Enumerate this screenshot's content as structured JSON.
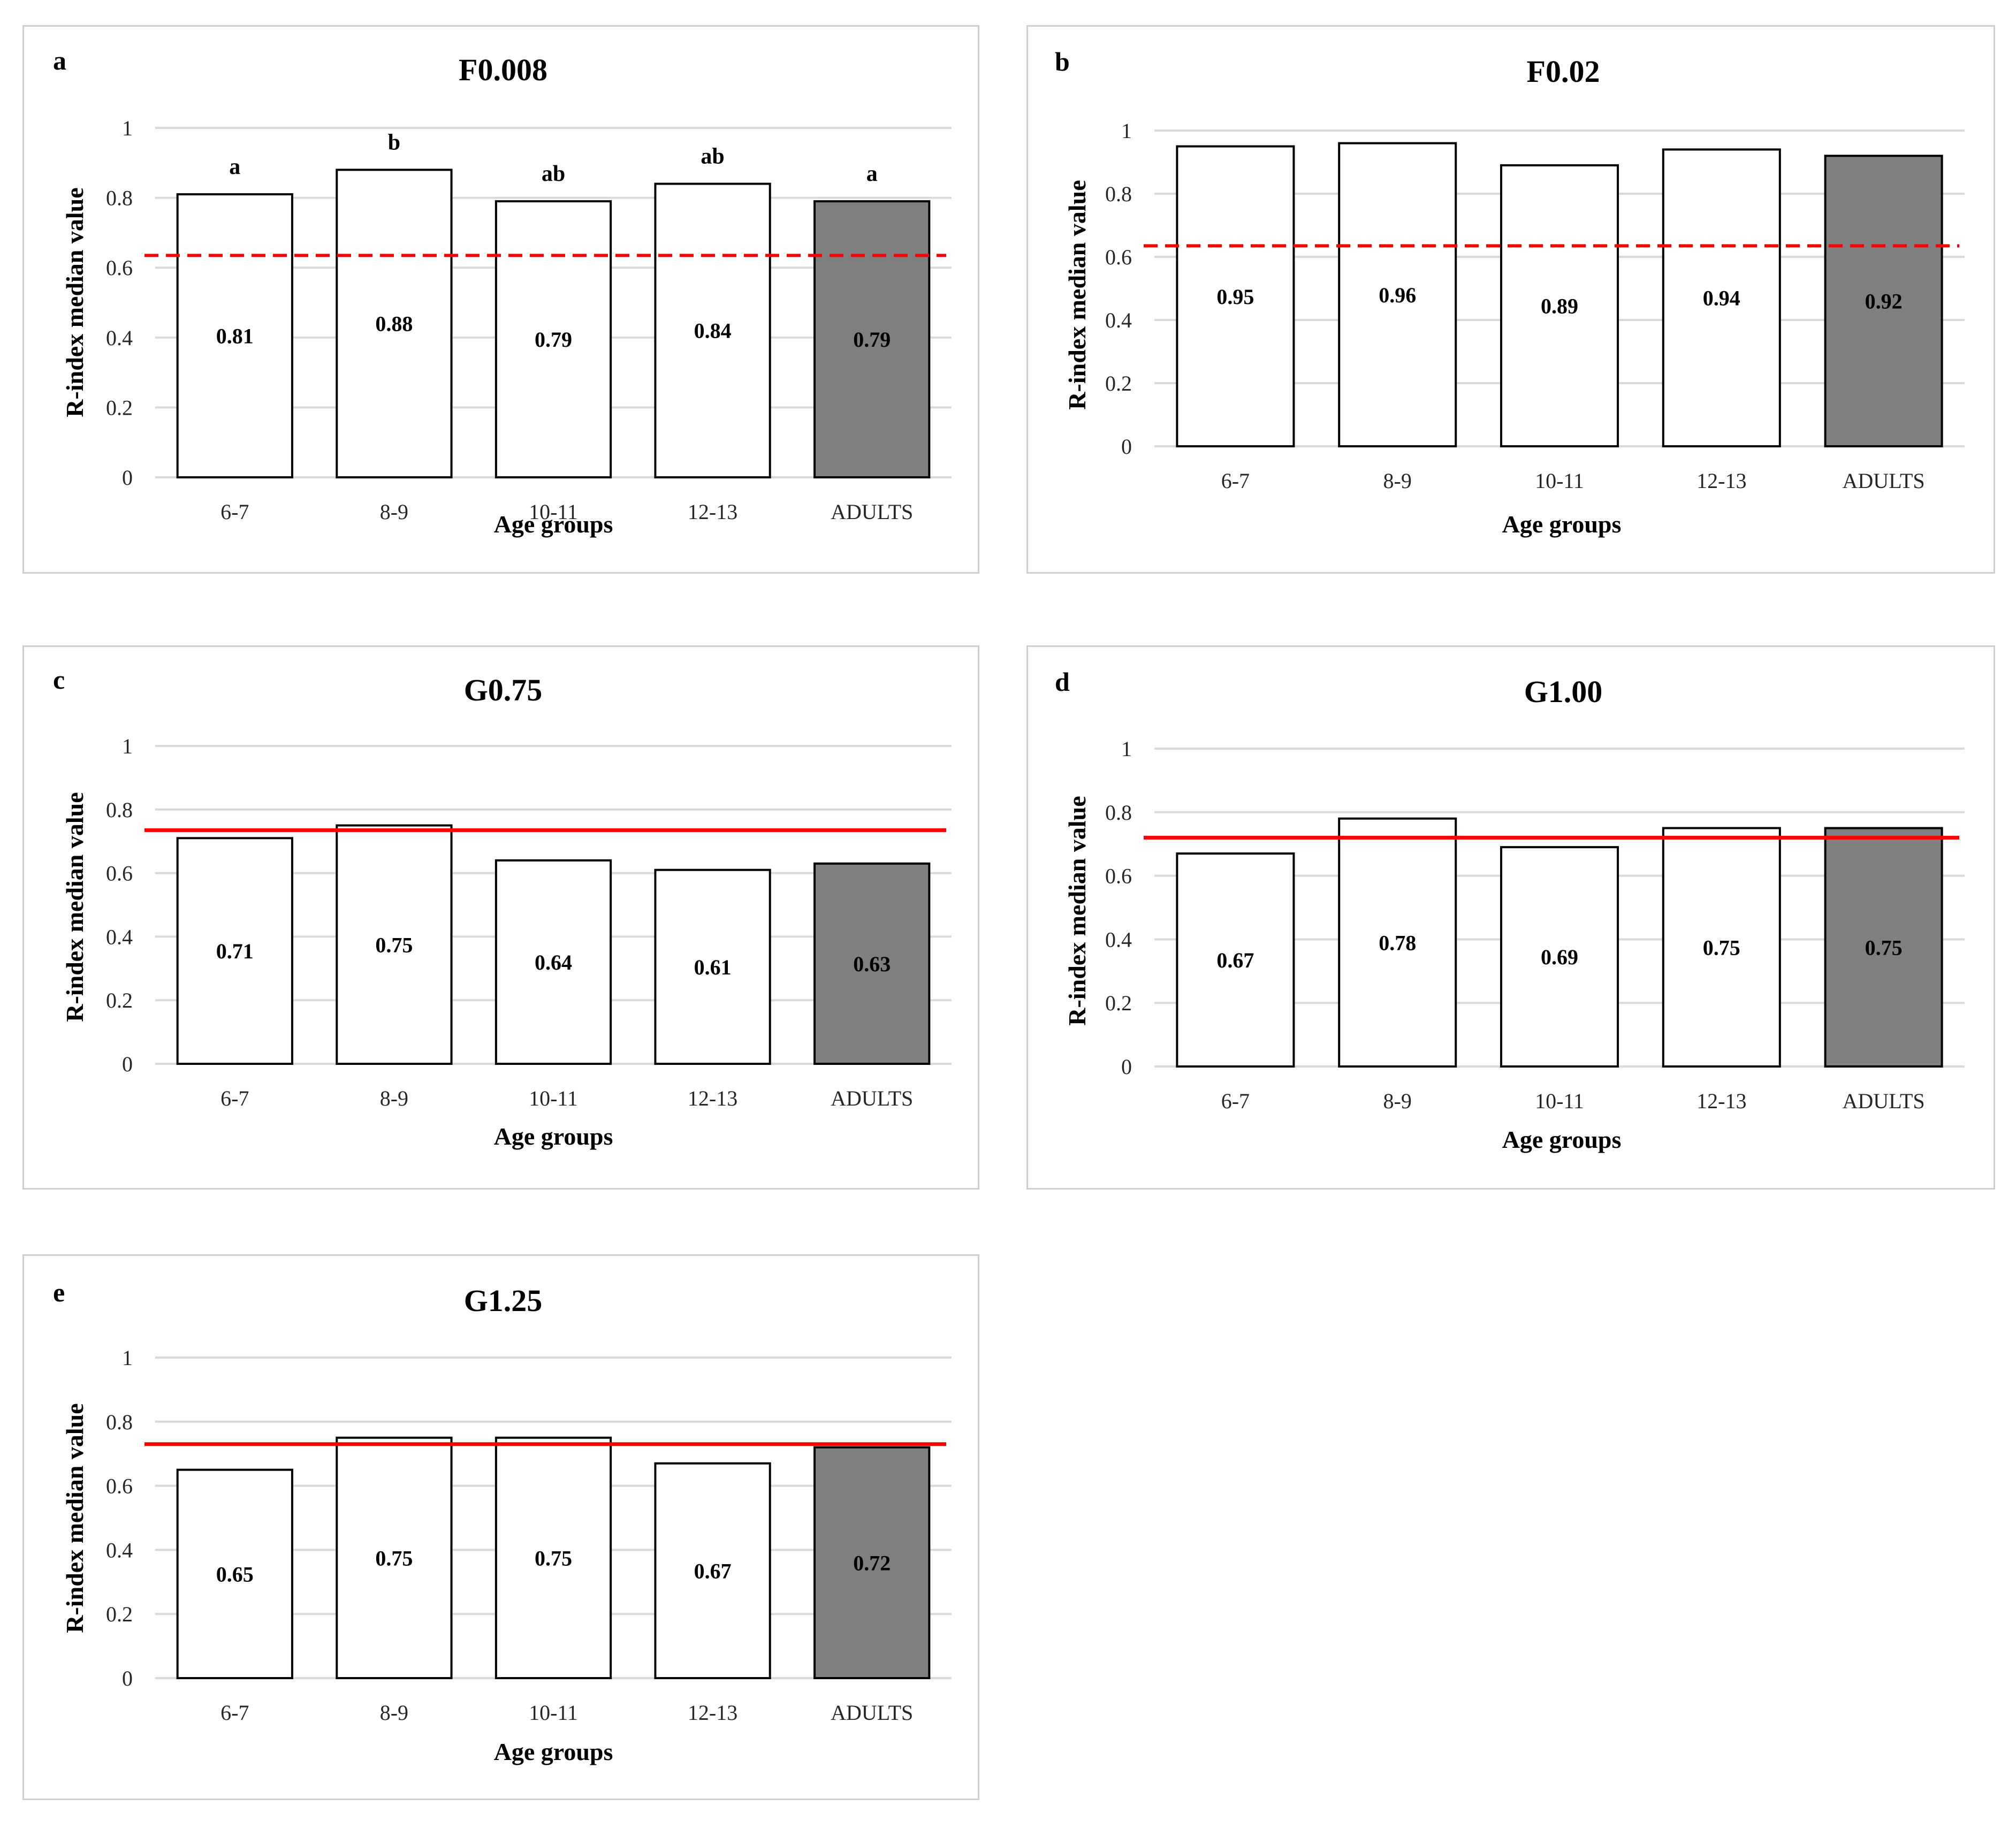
{
  "colors": {
    "bar_fill": "#ffffff",
    "bar_fill_adults": "#7f7f7f",
    "bar_stroke": "#000000",
    "grid": "#d9d9d9",
    "reference_line": "#ff0000"
  },
  "chart_data": [
    {
      "type": "bar",
      "panel": "a",
      "title": "F0.008",
      "xlabel": "Age groups",
      "ylabel": "R-index median value",
      "categories": [
        "6-7",
        "8-9",
        "10-11",
        "12-13",
        "ADULTS"
      ],
      "values": [
        0.81,
        0.88,
        0.79,
        0.84,
        0.79
      ],
      "value_labels": [
        "0.81",
        "0.88",
        "0.79",
        "0.84",
        "0.79"
      ],
      "significance_letters": [
        "a",
        "b",
        "ab",
        "ab",
        "a"
      ],
      "highlight_category": "ADULTS",
      "ylim": [
        0,
        1
      ],
      "yticks": [
        "0",
        "0.2",
        "0.4",
        "0.6",
        "0.8",
        "1"
      ],
      "ytick_values": [
        0,
        0.2,
        0.4,
        0.6,
        0.8,
        1
      ],
      "reference_line": {
        "value": 0.635,
        "style": "dashed"
      },
      "grid": true
    },
    {
      "type": "bar",
      "panel": "b",
      "title": "F0.02",
      "xlabel": "Age groups",
      "ylabel": "R-index median value",
      "categories": [
        "6-7",
        "8-9",
        "10-11",
        "12-13",
        "ADULTS"
      ],
      "values": [
        0.95,
        0.96,
        0.89,
        0.94,
        0.92
      ],
      "value_labels": [
        "0.95",
        "0.96",
        "0.89",
        "0.94",
        "0.92"
      ],
      "significance_letters": [],
      "highlight_category": "ADULTS",
      "ylim": [
        0,
        1
      ],
      "yticks": [
        "0",
        "0.2",
        "0.4",
        "0.6",
        "0.8",
        "1"
      ],
      "ytick_values": [
        0,
        0.2,
        0.4,
        0.6,
        0.8,
        1
      ],
      "reference_line": {
        "value": 0.635,
        "style": "dashed"
      },
      "grid": true
    },
    {
      "type": "bar",
      "panel": "c",
      "title": "G0.75",
      "xlabel": "Age groups",
      "ylabel": "R-index median value",
      "categories": [
        "6-7",
        "8-9",
        "10-11",
        "12-13",
        "ADULTS"
      ],
      "values": [
        0.71,
        0.75,
        0.64,
        0.61,
        0.63
      ],
      "value_labels": [
        "0.71",
        "0.75",
        "0.64",
        "0.61",
        "0.63"
      ],
      "significance_letters": [],
      "highlight_category": "ADULTS",
      "ylim": [
        0,
        1
      ],
      "yticks": [
        "0",
        "0.2",
        "0.4",
        "0.6",
        "0.8",
        "1"
      ],
      "ytick_values": [
        0,
        0.2,
        0.4,
        0.6,
        0.8,
        1
      ],
      "reference_line": {
        "value": 0.735,
        "style": "solid"
      },
      "grid": true
    },
    {
      "type": "bar",
      "panel": "d",
      "title": "G1.00",
      "xlabel": "Age groups",
      "ylabel": "R-index median value",
      "categories": [
        "6-7",
        "8-9",
        "10-11",
        "12-13",
        "ADULTS"
      ],
      "values": [
        0.67,
        0.78,
        0.69,
        0.75,
        0.75
      ],
      "value_labels": [
        "0.67",
        "0.78",
        "0.69",
        "0.75",
        "0.75"
      ],
      "significance_letters": [],
      "highlight_category": "ADULTS",
      "ylim": [
        0,
        1
      ],
      "yticks": [
        "0",
        "0.2",
        "0.4",
        "0.6",
        "0.8",
        "1"
      ],
      "ytick_values": [
        0,
        0.2,
        0.4,
        0.6,
        0.8,
        1
      ],
      "reference_line": {
        "value": 0.72,
        "style": "solid"
      },
      "grid": true
    },
    {
      "type": "bar",
      "panel": "e",
      "title": "G1.25",
      "xlabel": "Age groups",
      "ylabel": "R-index median value",
      "categories": [
        "6-7",
        "8-9",
        "10-11",
        "12-13",
        "ADULTS"
      ],
      "values": [
        0.65,
        0.75,
        0.75,
        0.67,
        0.72
      ],
      "value_labels": [
        "0.65",
        "0.75",
        "0.75",
        "0.67",
        "0.72"
      ],
      "significance_letters": [],
      "highlight_category": "ADULTS",
      "ylim": [
        0,
        1
      ],
      "yticks": [
        "0",
        "0.2",
        "0.4",
        "0.6",
        "0.8",
        "1"
      ],
      "ytick_values": [
        0,
        0.2,
        0.4,
        0.6,
        0.8,
        1
      ],
      "reference_line": {
        "value": 0.73,
        "style": "solid"
      },
      "grid": true
    }
  ]
}
